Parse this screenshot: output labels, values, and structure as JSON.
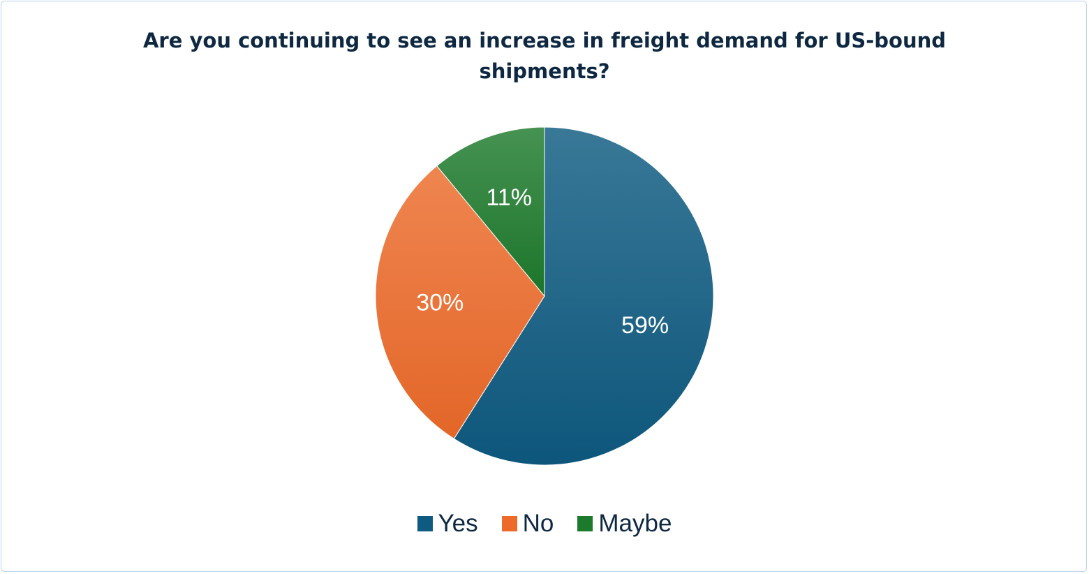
{
  "chart_data": {
    "type": "pie",
    "title": "Are you continuing to see an increase in freight demand for US-bound shipments?",
    "categories": [
      "Yes",
      "No",
      "Maybe"
    ],
    "values": [
      59,
      30,
      11
    ],
    "labels": [
      "59%",
      "30%",
      "11%"
    ],
    "colors": [
      "#0e5a80",
      "#ec6a2a",
      "#1d7a2c"
    ],
    "legend_position": "bottom"
  }
}
